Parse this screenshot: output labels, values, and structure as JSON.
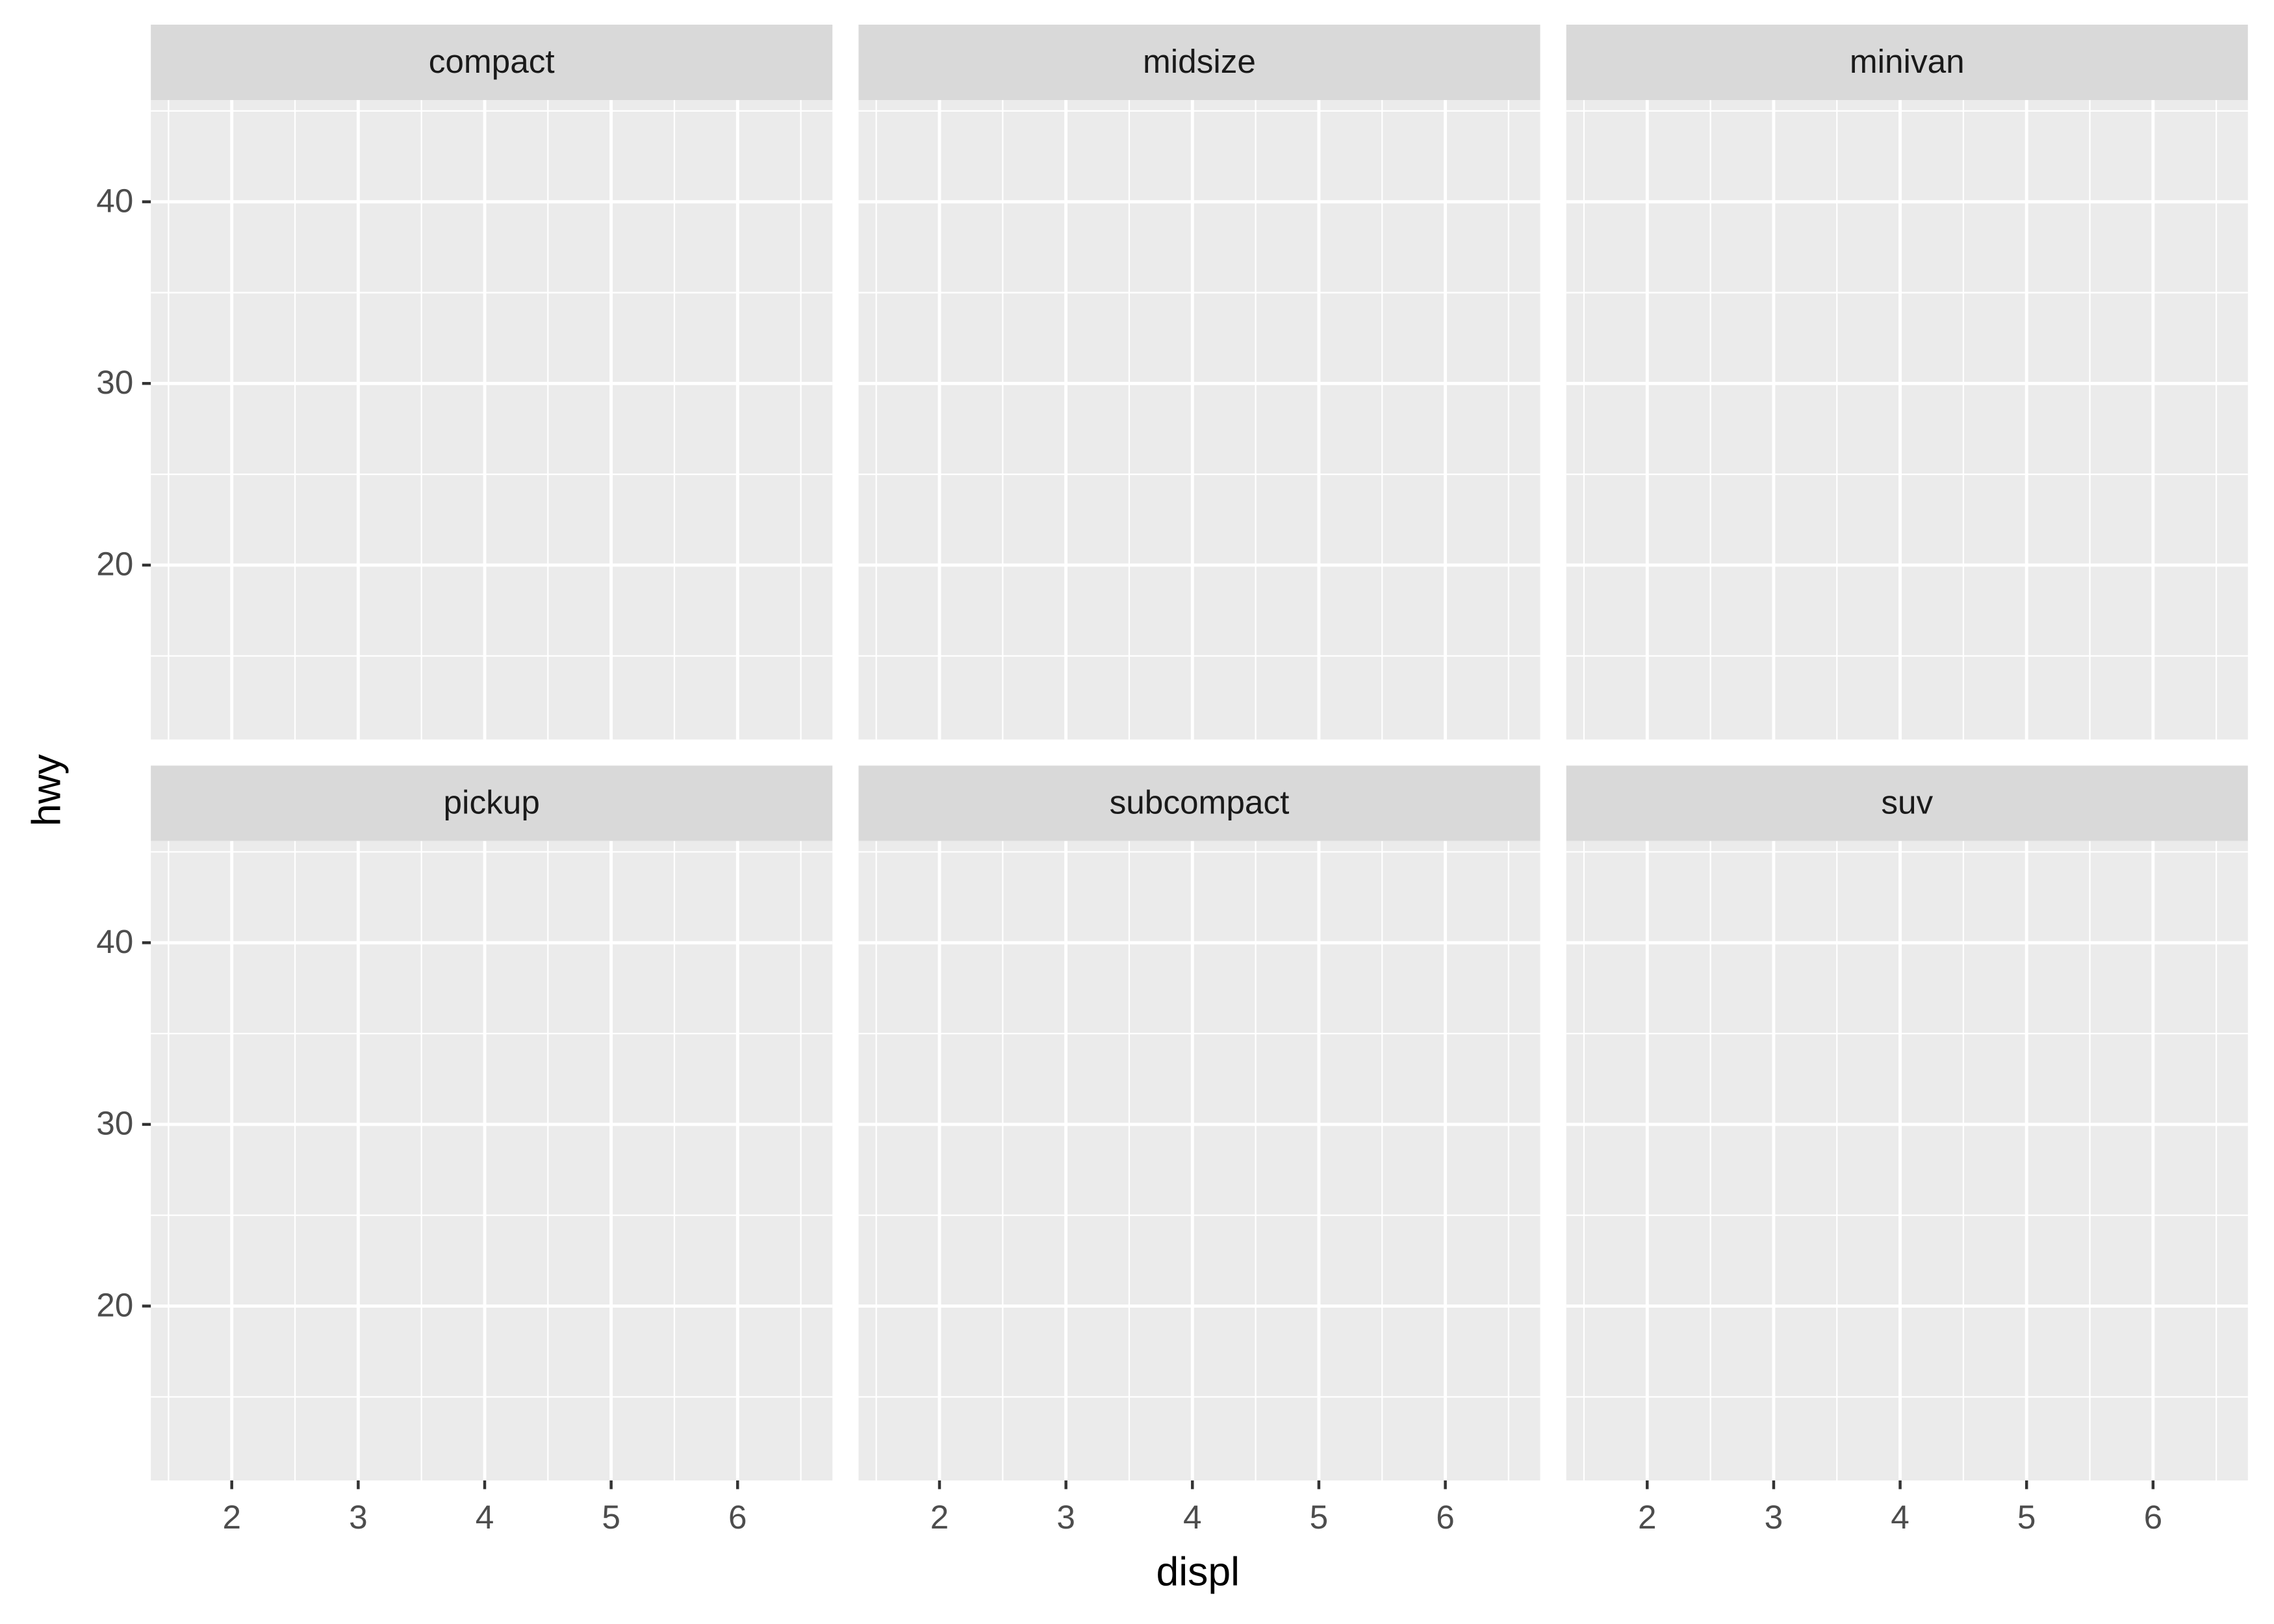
{
  "chart_data": {
    "type": "scatter",
    "facets": [
      "compact",
      "midsize",
      "minivan",
      "pickup",
      "subcompact",
      "suv"
    ],
    "x_label": "displ",
    "y_label": "hwy",
    "xlim": [
      1.36,
      6.75
    ],
    "xticks": [
      2,
      3,
      4,
      5,
      6
    ],
    "ylim": [
      10.4,
      45.6
    ],
    "yticks": [
      20,
      30,
      40
    ],
    "grid": true
  }
}
